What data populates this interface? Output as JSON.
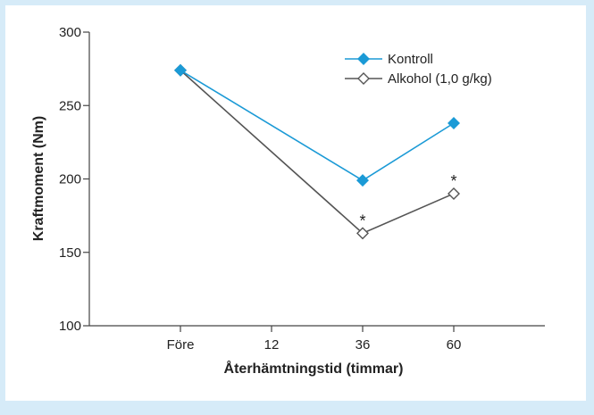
{
  "chart_data": {
    "type": "line",
    "title": "",
    "xlabel": "Återhämtningstid (timmar)",
    "ylabel": "Kraftmoment (Nm)",
    "x_ticks": [
      {
        "label": "Före",
        "value": -12
      },
      {
        "label": "12",
        "value": 12
      },
      {
        "label": "36",
        "value": 36
      },
      {
        "label": "60",
        "value": 60
      }
    ],
    "xlim": [
      -36,
      84
    ],
    "ylim": [
      100,
      300
    ],
    "y_ticks": [
      100,
      150,
      200,
      250,
      300
    ],
    "grid": false,
    "legend_position": "top-right",
    "series": [
      {
        "name": "Kontroll",
        "color": "#1b9ad6",
        "marker": "filled-diamond",
        "x": [
          -12,
          36,
          60
        ],
        "y": [
          274,
          199,
          238
        ]
      },
      {
        "name": "Alkohol (1,0 g/kg)",
        "color": "#555555",
        "marker": "open-diamond",
        "x": [
          -12,
          36,
          60
        ],
        "y": [
          274,
          163,
          190
        ]
      }
    ],
    "annotations": [
      {
        "text": "*",
        "x": 36,
        "y": 163
      },
      {
        "text": "*",
        "x": 60,
        "y": 190
      }
    ]
  }
}
